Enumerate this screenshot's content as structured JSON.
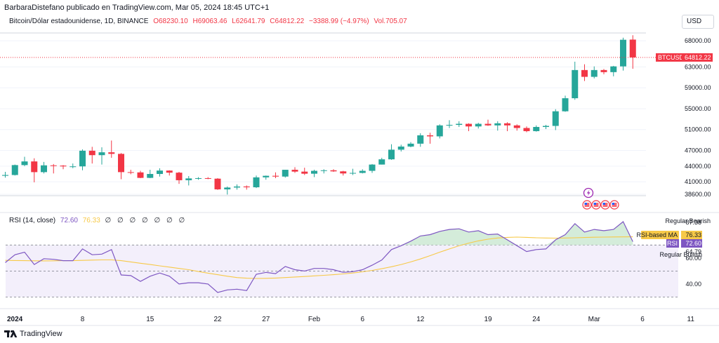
{
  "header": {
    "publisher_line": "BarbaraDistefano publicado en TradingView.com, Mar 05, 2024 18:45 UTC+1"
  },
  "legend": {
    "symbol_line": "Bitcoin/Dólar estadounidense, 1D, BINANCE",
    "open": "O68230.10",
    "high": "H69063.46",
    "low": "L62641.79",
    "close": "C64812.22",
    "change": "−3388.99 (−4.97%)",
    "volume": "Vol.705.07"
  },
  "currency_button": "USD",
  "price_axis": {
    "ticks": [
      "68000.00",
      "63000.00",
      "59000.00",
      "55000.00",
      "51000.00",
      "47000.00",
      "44000.00",
      "41000.00",
      "38600.00"
    ],
    "last_price_symbol": "BTCUSD",
    "last_price_value": "64812.22"
  },
  "rsi_panel": {
    "title": "RSI (14, close)",
    "rsi_value": "72.60",
    "ma_value": "76.33",
    "zeros": "∅ ∅ ∅ ∅ ∅ ∅ ∅",
    "axis_ticks": [
      "87.38",
      "64.79",
      "60.00",
      "40.00"
    ],
    "label_bearish": "Regular Bearish",
    "label_ma": "RSI-based MA",
    "label_rsi": "RSI",
    "label_bullish": "Regular Bullish"
  },
  "time_axis": [
    "2024",
    "8",
    "15",
    "22",
    "27",
    "Feb",
    "6",
    "12",
    "19",
    "24",
    "Mar",
    "6",
    "11"
  ],
  "footer": {
    "brand": "TradingView"
  },
  "colors": {
    "up": "#26a69a",
    "down": "#f23645",
    "rsi": "#7e57c2",
    "rsi_ma": "#f7c948",
    "band_fill": "#f1ecfb",
    "bearish_fill": "#c9e8cf"
  },
  "chart_data": {
    "type": "candlestick",
    "symbol": "BTCUSD",
    "interval": "1D",
    "ylim": [
      37800,
      69500
    ],
    "candles": [
      {
        "t": "2023-12-31",
        "o": 42150,
        "h": 42900,
        "l": 41800,
        "c": 42300
      },
      {
        "t": "2024-01-01",
        "o": 42300,
        "h": 44300,
        "l": 42200,
        "c": 44200
      },
      {
        "t": "2024-01-02",
        "o": 44200,
        "h": 45800,
        "l": 44000,
        "c": 44900
      },
      {
        "t": "2024-01-03",
        "o": 44900,
        "h": 45500,
        "l": 40900,
        "c": 42850
      },
      {
        "t": "2024-01-04",
        "o": 42850,
        "h": 44800,
        "l": 42600,
        "c": 44150
      },
      {
        "t": "2024-01-05",
        "o": 44150,
        "h": 44400,
        "l": 42600,
        "c": 44100
      },
      {
        "t": "2024-01-06",
        "o": 44100,
        "h": 44200,
        "l": 43400,
        "c": 43950
      },
      {
        "t": "2024-01-07",
        "o": 43950,
        "h": 44500,
        "l": 43600,
        "c": 43950
      },
      {
        "t": "2024-01-08",
        "o": 43950,
        "h": 47200,
        "l": 43200,
        "c": 46950
      },
      {
        "t": "2024-01-09",
        "o": 46950,
        "h": 47700,
        "l": 44500,
        "c": 46100
      },
      {
        "t": "2024-01-10",
        "o": 46100,
        "h": 47600,
        "l": 44300,
        "c": 46650
      },
      {
        "t": "2024-01-11",
        "o": 46650,
        "h": 48900,
        "l": 45600,
        "c": 46350
      },
      {
        "t": "2024-01-12",
        "o": 46350,
        "h": 46500,
        "l": 41500,
        "c": 42850
      },
      {
        "t": "2024-01-13",
        "o": 42850,
        "h": 43300,
        "l": 42450,
        "c": 42800
      },
      {
        "t": "2024-01-14",
        "o": 42800,
        "h": 43100,
        "l": 41700,
        "c": 41750
      },
      {
        "t": "2024-01-15",
        "o": 41750,
        "h": 43300,
        "l": 41700,
        "c": 42500
      },
      {
        "t": "2024-01-16",
        "o": 42500,
        "h": 43600,
        "l": 42000,
        "c": 43150
      },
      {
        "t": "2024-01-17",
        "o": 43150,
        "h": 43200,
        "l": 42200,
        "c": 42750
      },
      {
        "t": "2024-01-18",
        "o": 42750,
        "h": 42900,
        "l": 40600,
        "c": 41300
      },
      {
        "t": "2024-01-19",
        "o": 41300,
        "h": 42100,
        "l": 40300,
        "c": 41650
      },
      {
        "t": "2024-01-20",
        "o": 41650,
        "h": 41900,
        "l": 41400,
        "c": 41700
      },
      {
        "t": "2024-01-21",
        "o": 41700,
        "h": 41900,
        "l": 41500,
        "c": 41600
      },
      {
        "t": "2024-01-22",
        "o": 41600,
        "h": 41700,
        "l": 39450,
        "c": 39550
      },
      {
        "t": "2024-01-23",
        "o": 39550,
        "h": 40100,
        "l": 38550,
        "c": 39900
      },
      {
        "t": "2024-01-24",
        "o": 39900,
        "h": 40500,
        "l": 39500,
        "c": 40100
      },
      {
        "t": "2024-01-25",
        "o": 40100,
        "h": 40300,
        "l": 39500,
        "c": 39950
      },
      {
        "t": "2024-01-26",
        "o": 39950,
        "h": 42200,
        "l": 39800,
        "c": 41850
      },
      {
        "t": "2024-01-27",
        "o": 41850,
        "h": 42200,
        "l": 41400,
        "c": 42150
      },
      {
        "t": "2024-01-28",
        "o": 42150,
        "h": 42800,
        "l": 41700,
        "c": 42000
      },
      {
        "t": "2024-01-29",
        "o": 42000,
        "h": 43300,
        "l": 41800,
        "c": 43300
      },
      {
        "t": "2024-01-30",
        "o": 43300,
        "h": 43800,
        "l": 42700,
        "c": 42950
      },
      {
        "t": "2024-01-31",
        "o": 42950,
        "h": 43700,
        "l": 42300,
        "c": 42550
      },
      {
        "t": "2024-02-01",
        "o": 42550,
        "h": 43300,
        "l": 41900,
        "c": 43100
      },
      {
        "t": "2024-02-02",
        "o": 43100,
        "h": 43400,
        "l": 42600,
        "c": 43200
      },
      {
        "t": "2024-02-03",
        "o": 43200,
        "h": 43400,
        "l": 42900,
        "c": 43000
      },
      {
        "t": "2024-02-04",
        "o": 43000,
        "h": 43100,
        "l": 42200,
        "c": 42600
      },
      {
        "t": "2024-02-05",
        "o": 42600,
        "h": 43500,
        "l": 42300,
        "c": 42700
      },
      {
        "t": "2024-02-06",
        "o": 42700,
        "h": 43400,
        "l": 42600,
        "c": 43100
      },
      {
        "t": "2024-02-07",
        "o": 43100,
        "h": 44400,
        "l": 42700,
        "c": 44300
      },
      {
        "t": "2024-02-08",
        "o": 44300,
        "h": 45600,
        "l": 44300,
        "c": 45300
      },
      {
        "t": "2024-02-09",
        "o": 45300,
        "h": 48200,
        "l": 45200,
        "c": 47150
      },
      {
        "t": "2024-02-10",
        "o": 47150,
        "h": 48100,
        "l": 46800,
        "c": 47750
      },
      {
        "t": "2024-02-11",
        "o": 47750,
        "h": 48600,
        "l": 47600,
        "c": 48300
      },
      {
        "t": "2024-02-12",
        "o": 48300,
        "h": 50300,
        "l": 47700,
        "c": 49900
      },
      {
        "t": "2024-02-13",
        "o": 49900,
        "h": 50400,
        "l": 48300,
        "c": 49700
      },
      {
        "t": "2024-02-14",
        "o": 49700,
        "h": 52000,
        "l": 49300,
        "c": 51800
      },
      {
        "t": "2024-02-15",
        "o": 51800,
        "h": 52800,
        "l": 51300,
        "c": 51900
      },
      {
        "t": "2024-02-16",
        "o": 51900,
        "h": 52600,
        "l": 51500,
        "c": 52100
      },
      {
        "t": "2024-02-17",
        "o": 52100,
        "h": 52200,
        "l": 50700,
        "c": 51600
      },
      {
        "t": "2024-02-18",
        "o": 51600,
        "h": 52300,
        "l": 51200,
        "c": 52100
      },
      {
        "t": "2024-02-19",
        "o": 52100,
        "h": 52900,
        "l": 51700,
        "c": 51800
      },
      {
        "t": "2024-02-20",
        "o": 51800,
        "h": 52600,
        "l": 50800,
        "c": 52200
      },
      {
        "t": "2024-02-21",
        "o": 52200,
        "h": 52400,
        "l": 50700,
        "c": 51800
      },
      {
        "t": "2024-02-22",
        "o": 51800,
        "h": 52000,
        "l": 50800,
        "c": 51300
      },
      {
        "t": "2024-02-23",
        "o": 51300,
        "h": 51600,
        "l": 50500,
        "c": 50700
      },
      {
        "t": "2024-02-24",
        "o": 50700,
        "h": 51800,
        "l": 50600,
        "c": 51500
      },
      {
        "t": "2024-02-25",
        "o": 51500,
        "h": 51900,
        "l": 51100,
        "c": 51700
      },
      {
        "t": "2024-02-26",
        "o": 51700,
        "h": 54900,
        "l": 50900,
        "c": 54500
      },
      {
        "t": "2024-02-27",
        "o": 54500,
        "h": 57500,
        "l": 54400,
        "c": 57000
      },
      {
        "t": "2024-02-28",
        "o": 57000,
        "h": 64000,
        "l": 56700,
        "c": 62400
      },
      {
        "t": "2024-02-29",
        "o": 62400,
        "h": 63500,
        "l": 60300,
        "c": 61100
      },
      {
        "t": "2024-03-01",
        "o": 61100,
        "h": 63100,
        "l": 60800,
        "c": 62400
      },
      {
        "t": "2024-03-02",
        "o": 62400,
        "h": 62600,
        "l": 61600,
        "c": 62000
      },
      {
        "t": "2024-03-03",
        "o": 62000,
        "h": 63200,
        "l": 61200,
        "c": 63100
      },
      {
        "t": "2024-03-04",
        "o": 63100,
        "h": 68600,
        "l": 62300,
        "c": 68200
      },
      {
        "t": "2024-03-05",
        "o": 68230.1,
        "h": 69063.46,
        "l": 62641.79,
        "c": 64812.22
      }
    ],
    "rsi": {
      "ylim": [
        20,
        95
      ],
      "overbought": 70,
      "oversold": 30,
      "mid": 50,
      "values": [
        56.5,
        62.5,
        64.5,
        55.0,
        59.5,
        59.0,
        58.0,
        58.0,
        67.0,
        62.5,
        63.0,
        66.5,
        47.0,
        46.5,
        42.0,
        46.0,
        48.5,
        46.0,
        40.0,
        41.0,
        41.0,
        40.0,
        33.5,
        35.5,
        36.0,
        35.0,
        47.5,
        49.0,
        48.0,
        53.5,
        51.0,
        50.0,
        52.0,
        52.0,
        51.0,
        49.0,
        49.5,
        51.0,
        54.5,
        58.5,
        66.5,
        69.5,
        73.0,
        77.0,
        78.0,
        80.5,
        82.0,
        82.5,
        80.0,
        81.0,
        78.0,
        78.5,
        74.0,
        69.5,
        65.0,
        66.5,
        67.0,
        74.0,
        78.0,
        86.5,
        80.0,
        82.0,
        81.0,
        82.0,
        88.0,
        72.6
      ],
      "ma_values": [
        58.2,
        58.1,
        58.0,
        57.9,
        57.8,
        57.9,
        58.0,
        58.0,
        58.2,
        58.4,
        58.6,
        58.6,
        58.0,
        57.0,
        56.0,
        55.0,
        54.0,
        53.0,
        52.0,
        51.0,
        49.6,
        48.4,
        47.2,
        46.0,
        45.0,
        44.5,
        44.3,
        44.4,
        44.6,
        45.0,
        45.4,
        45.8,
        46.3,
        46.7,
        47.2,
        47.8,
        48.5,
        49.4,
        50.5,
        51.8,
        53.3,
        55.0,
        57.0,
        59.3,
        61.8,
        64.5,
        67.0,
        69.4,
        71.5,
        73.2,
        74.5,
        75.4,
        75.9,
        76.1,
        75.9,
        75.6,
        75.4,
        75.3,
        75.4,
        75.6,
        75.8,
        76.0,
        76.1,
        76.2,
        76.3,
        76.33
      ]
    }
  }
}
